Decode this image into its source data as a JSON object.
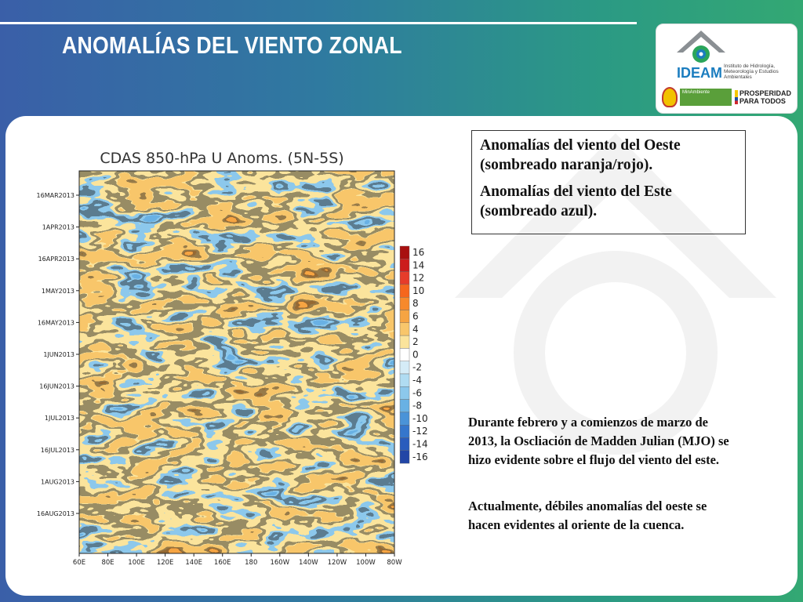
{
  "slide": {
    "title": "ANOMALÍAS DEL VIENTO ZONAL"
  },
  "logo": {
    "name": "IDEAM",
    "subtitle": "Instituto de Hidrología, Meteorología y Estudios Ambientales",
    "ministry": "MinAmbiente",
    "prosperity_line1": "PROSPERIDAD",
    "prosperity_line2": "PARA TODOS"
  },
  "legend_box": {
    "line1": "Anomalías del viento del Oeste (sombreado naranja/rojo).",
    "line2": "Anomalías del viento del Este (sombreado azul)."
  },
  "description": {
    "para1": "Durante febrero y a comienzos de marzo de 2013, la Oscliación de Madden Julian (MJO) se hizo evidente sobre el flujo del viento del este.",
    "para2": "Actualmente, débiles anomalías del oeste se hacen evidentes al oriente de la cuenca."
  },
  "chart_data": {
    "type": "heatmap",
    "title": "CDAS 850-hPa U Anoms. (5N-5S)",
    "x_tick_labels": [
      "60E",
      "80E",
      "100E",
      "120E",
      "140E",
      "160E",
      "180",
      "160W",
      "140W",
      "120W",
      "100W",
      "80W"
    ],
    "y_tick_labels": [
      "16MAR2013",
      "1APR2013",
      "16APR2013",
      "1MAY2013",
      "16MAY2013",
      "1JUN2013",
      "16JUN2013",
      "1JUL2013",
      "16JUL2013",
      "1AUG2013",
      "16AUG2013"
    ],
    "colorbar_labels": [
      "16",
      "14",
      "12",
      "10",
      "8",
      "6",
      "4",
      "2",
      "0",
      "-2",
      "-4",
      "-6",
      "-8",
      "-10",
      "-12",
      "-14",
      "-16"
    ],
    "colorbar_colors": [
      "#a81010",
      "#cc1c1c",
      "#e63c2a",
      "#f5661d",
      "#f7892c",
      "#f6a442",
      "#f8c66b",
      "#fbe49c",
      "#ffffff",
      "#d5ecf7",
      "#b0dcf2",
      "#8cc8ec",
      "#69b1e4",
      "#4a93d8",
      "#3576cc",
      "#2a5cbd",
      "#2346a6"
    ],
    "colors": {
      "positive": "#f6a442",
      "negative": "#8cc8ec"
    }
  }
}
